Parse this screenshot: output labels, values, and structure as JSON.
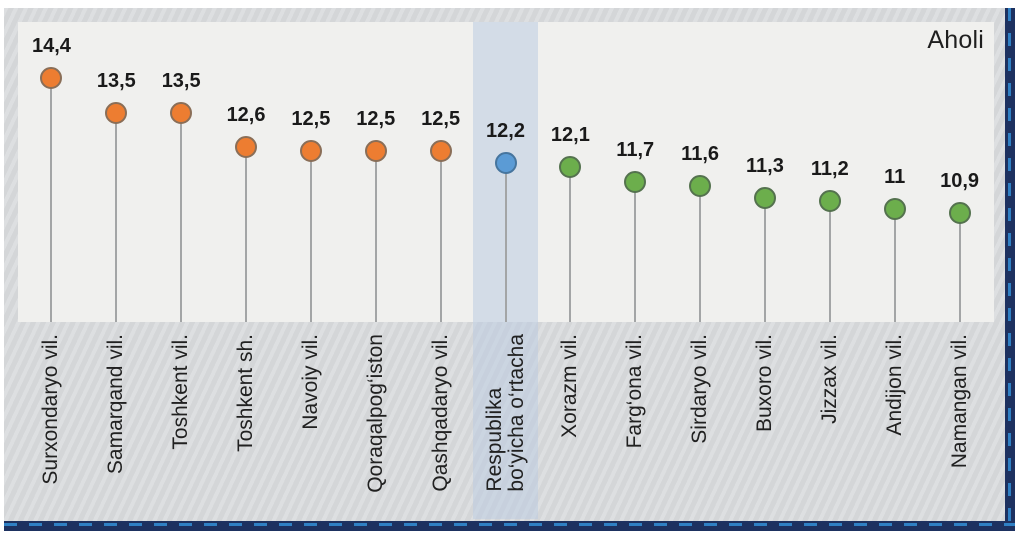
{
  "chart_data": {
    "type": "lollipop",
    "title": "Aholi",
    "legend_position": "none",
    "grid": false,
    "axis": "none",
    "categories": [
      "Surxondaryo vil.",
      "Samarqand vil.",
      "Toshkent vil.",
      "Toshkent sh.",
      "Navoiy vil.",
      "Qoraqalpog‘iston",
      "Qashqadaryo vil.",
      "Respublika bo‘yicha o‘rtacha",
      "Xorazm vil.",
      "Farg‘ona vil.",
      "Sirdaryo vil.",
      "Buxoro vil.",
      "Jizzax vil.",
      "Andijon vil.",
      "Namangan vil."
    ],
    "category_lines": [
      [
        "Surxondaryo vil."
      ],
      [
        "Samarqand vil."
      ],
      [
        "Toshkent vil."
      ],
      [
        "Toshkent sh."
      ],
      [
        "Navoiy vil."
      ],
      [
        "Qoraqalpog‘iston"
      ],
      [
        "Qashqadaryo vil."
      ],
      [
        "Respublika",
        "bo‘yicha o‘rtacha"
      ],
      [
        "Xorazm vil."
      ],
      [
        "Farg‘ona vil."
      ],
      [
        "Sirdaryo vil."
      ],
      [
        "Buxoro vil."
      ],
      [
        "Jizzax vil."
      ],
      [
        "Andijon vil."
      ],
      [
        "Namangan vil."
      ]
    ],
    "values": [
      14.4,
      13.5,
      13.5,
      12.6,
      12.5,
      12.5,
      12.5,
      12.2,
      12.1,
      11.7,
      11.6,
      11.3,
      11.2,
      11.0,
      10.9
    ],
    "value_labels": [
      "14,4",
      "13,5",
      "13,5",
      "12,6",
      "12,5",
      "12,5",
      "12,5",
      "12,2",
      "12,1",
      "11,7",
      "11,6",
      "11,3",
      "11,2",
      "11",
      "10,9"
    ],
    "groups": [
      "high",
      "high",
      "high",
      "high",
      "high",
      "high",
      "high",
      "average",
      "low",
      "low",
      "low",
      "low",
      "low",
      "low",
      "low"
    ],
    "highlight_index": 7,
    "colors": {
      "high": {
        "fill": "#ED7D31",
        "stroke": "#8a6e57"
      },
      "average": {
        "fill": "#5B9BD5",
        "stroke": "#46759e"
      },
      "low": {
        "fill": "#6CAE4C",
        "stroke": "#54724e"
      },
      "stem": "#a3a5a6",
      "band": "rgba(188,204,226,0.55)",
      "frame_navy": "#1d3160",
      "frame_dash_blue": "#2f80c4"
    }
  }
}
